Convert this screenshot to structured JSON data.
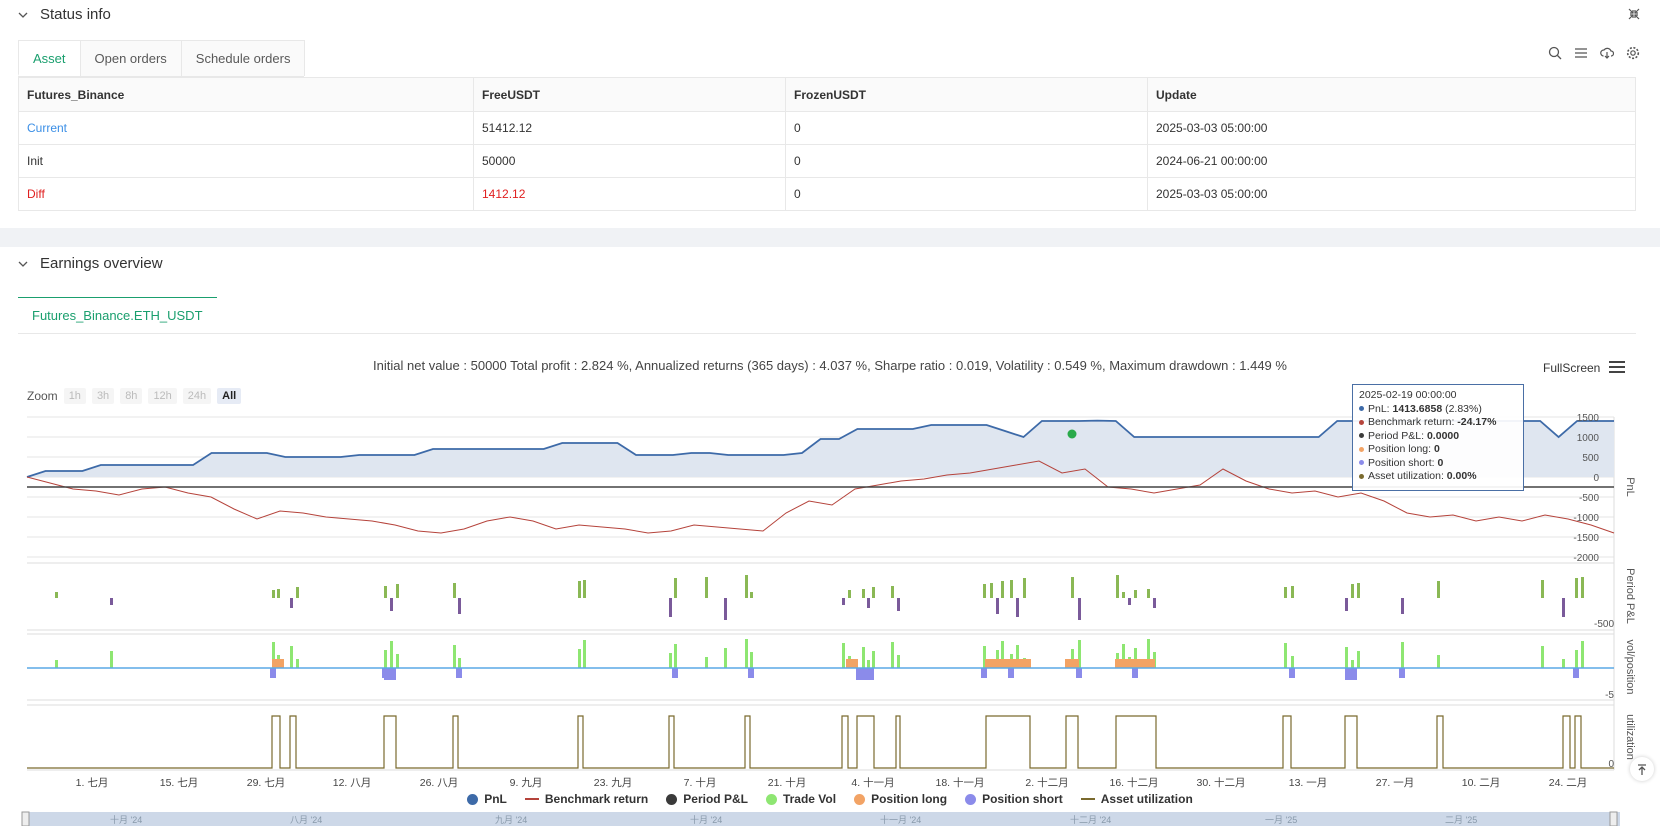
{
  "status": {
    "title": "Status info",
    "tabs": [
      "Asset",
      "Open orders",
      "Schedule orders"
    ],
    "columns": [
      "Futures_Binance",
      "FreeUSDT",
      "FrozenUSDT",
      "Update"
    ],
    "rows": [
      {
        "label": "Current",
        "free": "51412.12",
        "frozen": "0",
        "update": "2025-03-03 05:00:00",
        "color": "#3a8ee6"
      },
      {
        "label": "Init",
        "free": "50000",
        "frozen": "0",
        "update": "2024-06-21 00:00:00",
        "color": "#333333"
      },
      {
        "label": "Diff",
        "free": "1412.12",
        "frozen": "0",
        "update": "2025-03-03 05:00:00",
        "color": "#e02020"
      }
    ]
  },
  "earnings": {
    "title": "Earnings overview",
    "tab": "Futures_Binance.ETH_USDT",
    "summary": "Initial net value : 50000 Total profit : 2.824 %, Annualized returns (365 days) : 4.037 %, Sharpe ratio : 0.019, Volatility : 0.549 %, Maximum drawdown : 1.449 %",
    "zoom_label": "Zoom",
    "zoom_buttons": [
      "1h",
      "3h",
      "8h",
      "12h",
      "24h",
      "All"
    ],
    "fullscreen": "FullScreen"
  },
  "tooltip": {
    "date": "2025-02-19 00:00:00",
    "pnl_label": "PnL:",
    "pnl_value": "1413.6858",
    "pnl_pct": "(2.83%)",
    "bench_label": "Benchmark return:",
    "bench_value": "-24.17%",
    "period_label": "Period P&L:",
    "period_value": "0.0000",
    "long_label": "Position long:",
    "long_value": "0",
    "short_label": "Position short:",
    "short_value": "0",
    "util_label": "Asset utilization:",
    "util_value": "0.00%"
  },
  "legend": [
    "PnL",
    "Benchmark return",
    "Period P&L",
    "Trade Vol",
    "Position long",
    "Position short",
    "Asset utilization"
  ],
  "colors": {
    "pnl": "#3d6aa8",
    "benchmark": "#b5433b",
    "period": "#3a3a3a",
    "tradevol": "#8ee672",
    "long": "#f2a365",
    "short": "#8b8bea",
    "util": "#7a6a2e",
    "accent": "#1a9f6e"
  },
  "chart_data": {
    "type": "line",
    "x_ticks": [
      "1. 七月",
      "15. 七月",
      "29. 七月",
      "12. 八月",
      "26. 八月",
      "9. 九月",
      "23. 九月",
      "7. 十月",
      "21. 十月",
      "4. 十一月",
      "18. 十一月",
      "2. 十二月",
      "16. 十二月",
      "30. 十二月",
      "13. 一月",
      "27. 一月",
      "10. 二月",
      "24. 二月"
    ],
    "navigator_ticks": [
      "十月 '24",
      "八月 '24",
      "九月 '24",
      "十月 '24",
      "十一月 '24",
      "十二月 '24",
      "一月 '25",
      "二月 '25",
      "二月 '25"
    ],
    "pnl_axis": [
      "1500",
      "1000",
      "500",
      "0",
      "-500",
      "-1000",
      "-1500",
      "-2000"
    ],
    "pnl_ylim": [
      -2000,
      1500
    ],
    "y_labels": {
      "pnl": "PnL",
      "period": "Period P&L",
      "vol": "vol/position",
      "util": "utilization"
    },
    "period_axis": [
      "-500"
    ],
    "vol_axis": [
      "-5"
    ],
    "util_axis": [
      "0"
    ],
    "series": [
      {
        "name": "PnL",
        "values": [
          0,
          150,
          150,
          150,
          300,
          300,
          300,
          300,
          300,
          300,
          600,
          600,
          600,
          600,
          500,
          500,
          500,
          500,
          550,
          550,
          550,
          550,
          700,
          700,
          700,
          700,
          700,
          700,
          700,
          850,
          850,
          850,
          850,
          550,
          550,
          550,
          600,
          600,
          550,
          550,
          550,
          550,
          600,
          950,
          950,
          1200,
          1200,
          1200,
          1200,
          1300,
          1300,
          1300,
          1300,
          1150,
          1000,
          1400,
          1400,
          1400,
          1410,
          1400,
          1000,
          1000,
          1000,
          1000,
          1000,
          1000,
          1000,
          1000,
          1000,
          1000,
          1000,
          1400,
          1400,
          1400,
          1400,
          1400,
          1400,
          1400,
          1400,
          1400,
          1400,
          1400,
          1400,
          1000,
          1400,
          1400,
          1400
        ]
      },
      {
        "name": "Benchmark return",
        "values": [
          0,
          -150,
          -300,
          -350,
          -450,
          -300,
          -250,
          -400,
          -500,
          -800,
          -1050,
          -850,
          -900,
          -1000,
          -1050,
          -1100,
          -1200,
          -1350,
          -1400,
          -1300,
          -1100,
          -1000,
          -1100,
          -1300,
          -1200,
          -1250,
          -1300,
          -1400,
          -1350,
          -1200,
          -1250,
          -1300,
          -1350,
          -900,
          -600,
          -700,
          -300,
          -200,
          -100,
          -50,
          50,
          100,
          200,
          300,
          400,
          100,
          200,
          -250,
          -300,
          -400,
          -300,
          -200,
          200,
          -100,
          -300,
          -400,
          -350,
          -500,
          -400,
          -600,
          -900,
          -1000,
          -950,
          -1100,
          -1000,
          -1100,
          -950,
          -1050,
          -1200,
          -1400
        ]
      }
    ]
  }
}
